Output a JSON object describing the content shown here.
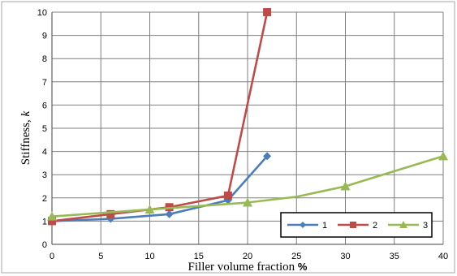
{
  "chart_data": {
    "type": "line",
    "xlabel_text": "Filler volume fraction",
    "xlabel_unit": "%",
    "ylabel_text": "Stiffness, ",
    "ylabel_symbol": "k",
    "xlim": [
      0,
      40
    ],
    "ylim": [
      0,
      10
    ],
    "x_ticks": [
      0,
      5,
      10,
      15,
      20,
      25,
      30,
      35,
      40
    ],
    "y_ticks": [
      0,
      1,
      2,
      3,
      4,
      5,
      6,
      7,
      8,
      9,
      10
    ],
    "grid": true,
    "legend_position": "bottom-right",
    "series": [
      {
        "name": "1",
        "color": "#4a7ebb",
        "marker": "diamond",
        "x": [
          0,
          6,
          12,
          18,
          22
        ],
        "y": [
          1.0,
          1.1,
          1.3,
          1.9,
          3.8
        ]
      },
      {
        "name": "2",
        "color": "#be4b48",
        "marker": "square",
        "x": [
          0,
          6,
          12,
          18,
          22
        ],
        "y": [
          1.0,
          1.3,
          1.6,
          2.1,
          10.0
        ]
      },
      {
        "name": "3",
        "color": "#98b954",
        "marker": "triangle",
        "x": [
          0,
          10,
          20,
          30,
          40
        ],
        "y": [
          1.2,
          1.5,
          1.8,
          2.5,
          3.8
        ],
        "curve_x": [
          0,
          5,
          10,
          15,
          20,
          25,
          30,
          35,
          40
        ],
        "curve_y": [
          1.2,
          1.35,
          1.5,
          1.65,
          1.8,
          2.05,
          2.5,
          3.15,
          3.8
        ]
      }
    ]
  }
}
